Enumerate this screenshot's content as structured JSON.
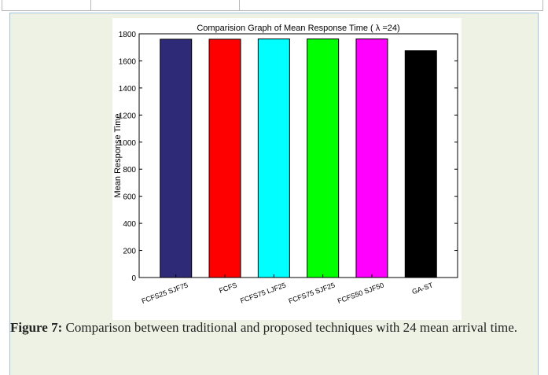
{
  "caption": {
    "label": "Figure 7:",
    "text": " Comparison between traditional and proposed techniques with 24 mean arrival time."
  },
  "chart_data": {
    "type": "bar",
    "title": "Comparision Graph of Mean Response Time ( λ =24)",
    "xlabel": "",
    "ylabel": "Mean Response Time",
    "ylim": [
      0,
      1800
    ],
    "yticks": [
      0,
      200,
      400,
      600,
      800,
      1000,
      1200,
      1400,
      1600,
      1800
    ],
    "grid": false,
    "categories": [
      "FCFS25 SJF75",
      "FCFS",
      "FCFS75 LJF25",
      "FCFS75 SJF25",
      "FCFS50 SJF50",
      "GA-ST"
    ],
    "values": [
      1760,
      1760,
      1762,
      1762,
      1762,
      1675
    ],
    "colors": [
      "#2f2a78",
      "#ff0000",
      "#00ffff",
      "#00ff00",
      "#ff00ff",
      "#000000"
    ]
  }
}
